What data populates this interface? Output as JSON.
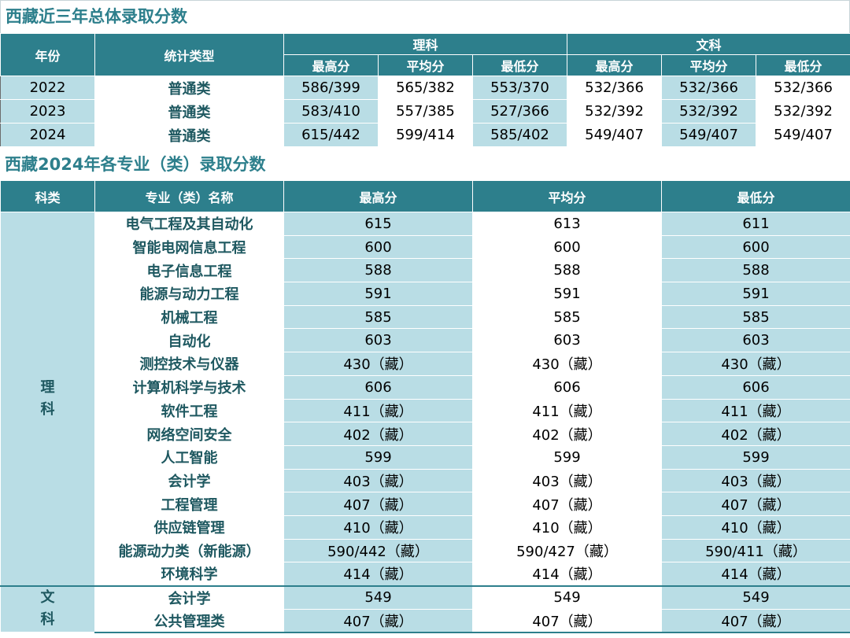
{
  "title1": "西藏近三年总体录取分数",
  "title2": "西藏2024年各专业（类）录取分数",
  "t1": {
    "year_header": "年份",
    "type_header": "统计类型",
    "science_header": "理科",
    "arts_header": "文科",
    "max_header": "最高分",
    "avg_header": "平均分",
    "min_header": "最低分",
    "rows": [
      {
        "year": "2022",
        "type": "普通类",
        "s_max": "586/399",
        "s_avg": "565/382",
        "s_min": "553/370",
        "a_max": "532/366",
        "a_avg": "532/366",
        "a_min": "532/366"
      },
      {
        "year": "2023",
        "type": "普通类",
        "s_max": "583/410",
        "s_avg": "557/385",
        "s_min": "527/366",
        "a_max": "532/392",
        "a_avg": "532/392",
        "a_min": "532/392"
      },
      {
        "year": "2024",
        "type": "普通类",
        "s_max": "615/442",
        "s_avg": "599/414",
        "s_min": "585/402",
        "a_max": "549/407",
        "a_avg": "549/407",
        "a_min": "549/407"
      }
    ]
  },
  "t2": {
    "cat_header": "科类",
    "major_header": "专业（类）名称",
    "max_header": "最高分",
    "avg_header": "平均分",
    "min_header": "最低分",
    "science_label_1": "理",
    "science_label_2": "科",
    "arts_label_1": "文",
    "arts_label_2": "科",
    "science_rows": [
      {
        "major": "电气工程及其自动化",
        "max": "615",
        "avg": "613",
        "min": "611"
      },
      {
        "major": "智能电网信息工程",
        "max": "600",
        "avg": "600",
        "min": "600"
      },
      {
        "major": "电子信息工程",
        "max": "588",
        "avg": "588",
        "min": "588"
      },
      {
        "major": "能源与动力工程",
        "max": "591",
        "avg": "591",
        "min": "591"
      },
      {
        "major": "机械工程",
        "max": "585",
        "avg": "585",
        "min": "585"
      },
      {
        "major": "自动化",
        "max": "603",
        "avg": "603",
        "min": "603"
      },
      {
        "major": "测控技术与仪器",
        "max": "430（藏）",
        "avg": "430（藏）",
        "min": "430（藏）"
      },
      {
        "major": "计算机科学与技术",
        "max": "606",
        "avg": "606",
        "min": "606"
      },
      {
        "major": "软件工程",
        "max": "411（藏）",
        "avg": "411（藏）",
        "min": "411（藏）"
      },
      {
        "major": "网络空间安全",
        "max": "402（藏）",
        "avg": "402（藏）",
        "min": "402（藏）"
      },
      {
        "major": "人工智能",
        "max": "599",
        "avg": "599",
        "min": "599"
      },
      {
        "major": "会计学",
        "max": "403（藏）",
        "avg": "403（藏）",
        "min": "403（藏）"
      },
      {
        "major": "工程管理",
        "max": "407（藏）",
        "avg": "407（藏）",
        "min": "407（藏）"
      },
      {
        "major": "供应链管理",
        "max": "410（藏）",
        "avg": "410（藏）",
        "min": "410（藏）"
      },
      {
        "major": "能源动力类（新能源）",
        "max": "590/442（藏）",
        "avg": "590/427（藏）",
        "min": "590/411（藏）"
      },
      {
        "major": "环境科学",
        "max": "414（藏）",
        "avg": "414（藏）",
        "min": "414（藏）"
      }
    ],
    "arts_rows": [
      {
        "major": "会计学",
        "max": "549",
        "avg": "549",
        "min": "549"
      },
      {
        "major": "公共管理类",
        "max": "407（藏）",
        "avg": "407（藏）",
        "min": "407（藏）"
      }
    ]
  },
  "colors": {
    "header_bg": "#2d7f8c",
    "light_cell": "#b9dde5",
    "title_text": "#2d7f8c"
  }
}
